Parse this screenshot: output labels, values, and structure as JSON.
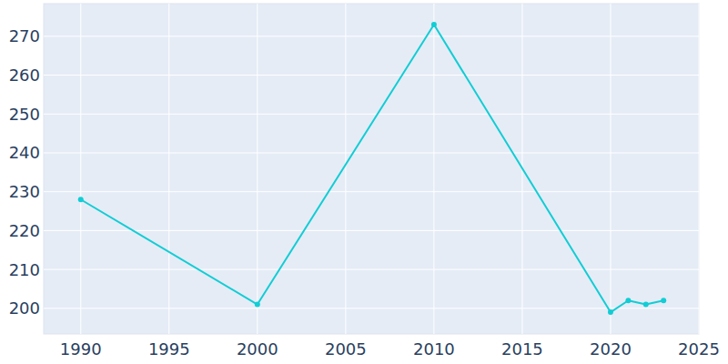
{
  "chart_data": {
    "type": "line",
    "x": [
      1990,
      2000,
      2010,
      2020,
      2021,
      2022,
      2023
    ],
    "values": [
      228,
      201,
      273,
      199,
      202,
      201,
      202
    ],
    "color": "#12cdd4",
    "marker": "circle",
    "xlim": [
      1987.9,
      2025
    ],
    "xticks": [
      1990,
      1995,
      2000,
      2005,
      2010,
      2015,
      2020,
      2025
    ],
    "ylim": [
      193.4,
      278.4
    ],
    "yticks": [
      200,
      210,
      220,
      230,
      240,
      250,
      260,
      270
    ],
    "grid": true
  }
}
